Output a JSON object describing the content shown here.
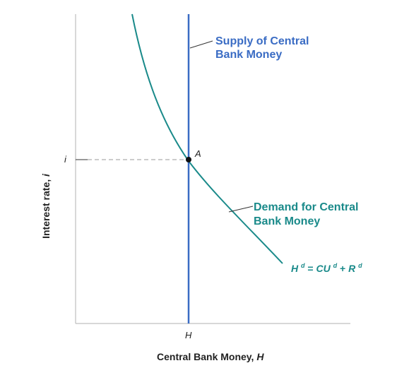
{
  "axes": {
    "y_label_main": "Interest rate, ",
    "y_label_var": "i",
    "x_label_main": "Central Bank Money, ",
    "x_label_var": "H",
    "y_tick": "i",
    "x_tick": "H"
  },
  "point": {
    "label": "A"
  },
  "supply": {
    "label_line1": "Supply of Central",
    "label_line2": "Bank Money"
  },
  "demand": {
    "label_line1": "Demand for Central",
    "label_line2": "Bank Money"
  },
  "equation": {
    "lhs": "H",
    "lhs_sup": "d",
    "eq": " = ",
    "cu": "CU",
    "cu_sup": "d",
    "plus": " + ",
    "r": "R",
    "r_sup": "d"
  },
  "colors": {
    "supply": "#3a6cc4",
    "demand": "#1a8a8a",
    "axis": "#b0b0b0",
    "text": "#222222",
    "dash": "#9a9a9a"
  }
}
